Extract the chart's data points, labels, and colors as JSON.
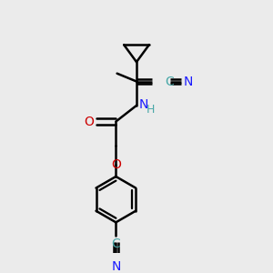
{
  "background_color": "#ebebeb",
  "bond_color": "#000000",
  "bond_width": 1.8,
  "figsize": [
    3.0,
    3.0
  ],
  "dpi": 100,
  "xlim": [
    0.15,
    0.85
  ],
  "ylim": [
    -0.05,
    1.05
  ],
  "cn_color": "#1a1aff",
  "o_color": "#cc0000",
  "nh_color": "#1a1aff",
  "h_color": "#4aa8a8",
  "c_color": "#4aa8a8"
}
